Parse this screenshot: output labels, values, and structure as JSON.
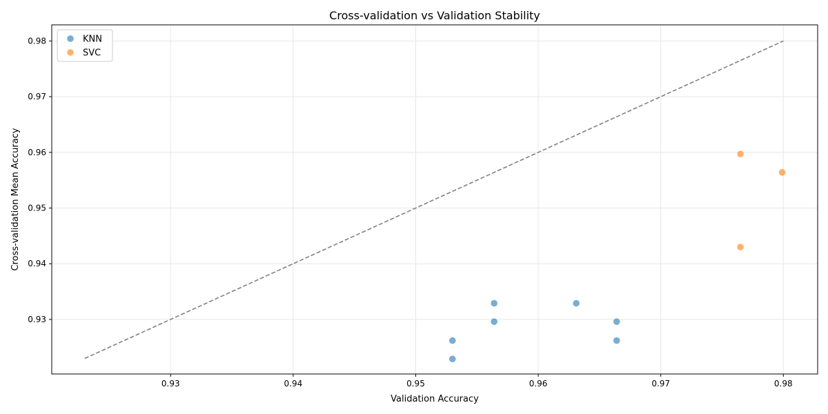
{
  "chart_data": {
    "type": "scatter",
    "title": "Cross-validation vs Validation Stability",
    "xlabel": "Validation Accuracy",
    "ylabel": "Cross-validation Mean Accuracy",
    "xlim": [
      0.9203,
      0.9828
    ],
    "ylim": [
      0.9202,
      0.9829
    ],
    "xticks": [
      "0.93",
      "0.94",
      "0.95",
      "0.96",
      "0.97",
      "0.98"
    ],
    "yticks": [
      "0.93",
      "0.94",
      "0.95",
      "0.96",
      "0.97",
      "0.98"
    ],
    "grid": true,
    "legend_position": "top-left",
    "reference_line": {
      "style": "dashed",
      "color": "#808080",
      "x": [
        0.923,
        0.98
      ],
      "y": [
        0.923,
        0.98
      ]
    },
    "series": [
      {
        "name": "KNN",
        "color": "#1f77b4",
        "points": [
          {
            "x": 0.953,
            "y": 0.9229
          },
          {
            "x": 0.953,
            "y": 0.9262
          },
          {
            "x": 0.9564,
            "y": 0.9296
          },
          {
            "x": 0.9564,
            "y": 0.9329
          },
          {
            "x": 0.9631,
            "y": 0.9329
          },
          {
            "x": 0.9664,
            "y": 0.9296
          },
          {
            "x": 0.9664,
            "y": 0.9262
          }
        ]
      },
      {
        "name": "SVC",
        "color": "#ff7f0e",
        "points": [
          {
            "x": 0.9765,
            "y": 0.9597
          },
          {
            "x": 0.9765,
            "y": 0.943
          },
          {
            "x": 0.9799,
            "y": 0.9564
          }
        ]
      }
    ]
  }
}
